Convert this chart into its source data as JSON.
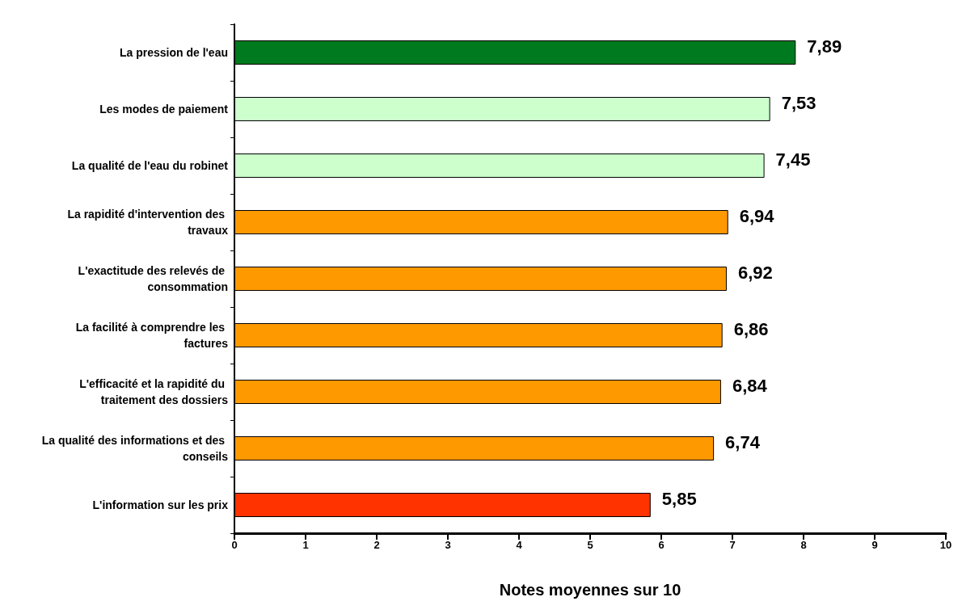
{
  "chart_data": {
    "type": "bar",
    "orientation": "horizontal",
    "xlabel": "Notes moyennes sur 10",
    "categories": [
      "La pression de l'eau",
      "Les modes de paiement",
      "La qualité de l'eau du robinet",
      "La rapidité d'intervention des travaux",
      "L'exactitude des relevés de consommation",
      "La facilité à comprendre les factures",
      "L'efficacité et la rapidité du traitement des dossiers",
      "La qualité des informations et des conseils",
      "L'information sur les prix"
    ],
    "values": [
      7.89,
      7.53,
      7.45,
      6.94,
      6.92,
      6.86,
      6.84,
      6.74,
      5.85
    ],
    "value_labels": [
      "7,89",
      "7,53",
      "7,45",
      "6,94",
      "6,92",
      "6,86",
      "6,84",
      "6,74",
      "5,85"
    ],
    "colors": [
      "#007a1e",
      "#ccffcc",
      "#ccffcc",
      "#ff9900",
      "#ff9900",
      "#ff9900",
      "#ff9900",
      "#ff9900",
      "#ff3300"
    ],
    "xlim": [
      0,
      10
    ],
    "xticks": [
      0,
      1,
      2,
      3,
      4,
      5,
      6,
      7,
      8,
      9,
      10
    ],
    "grid": false
  }
}
